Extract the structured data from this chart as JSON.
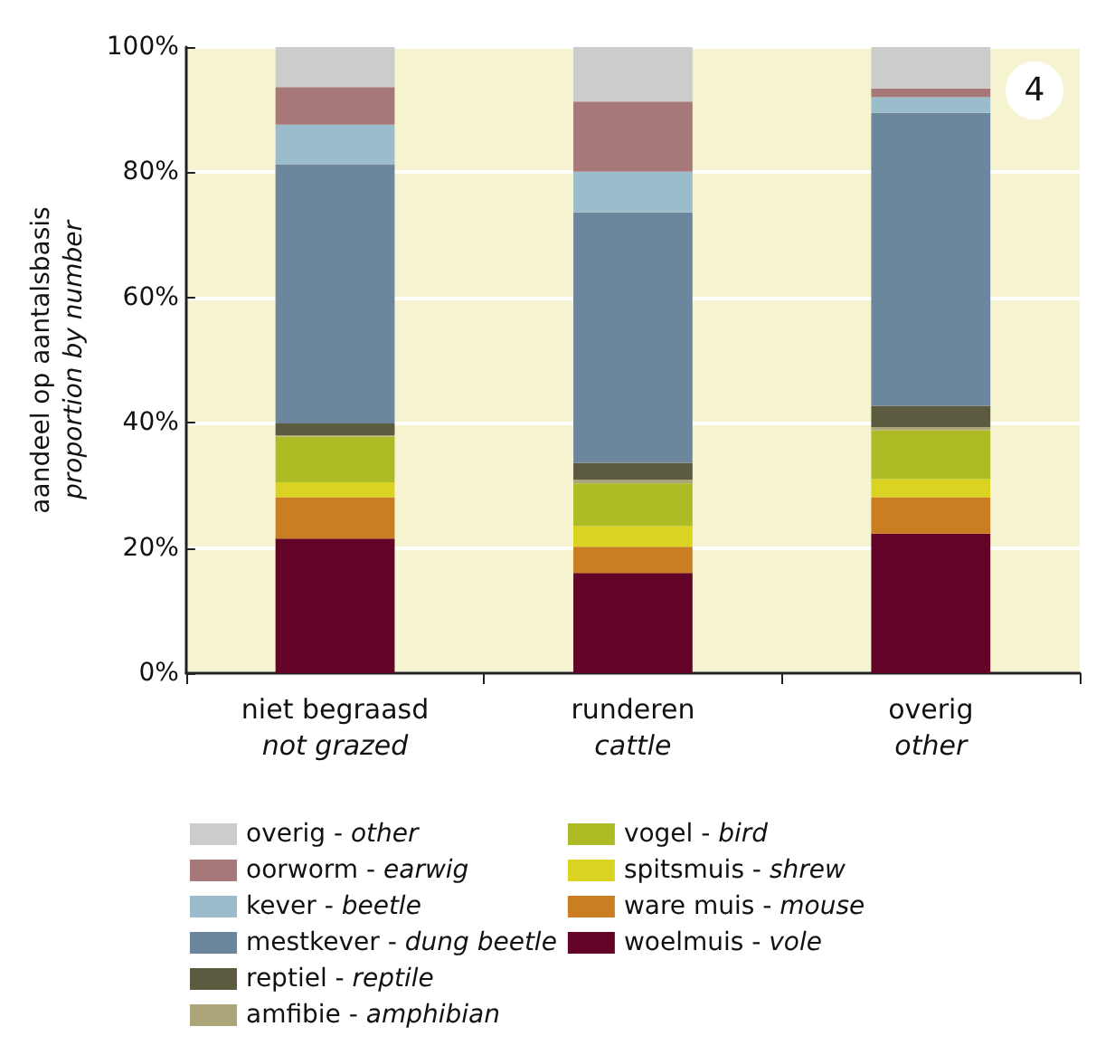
{
  "chart_data": {
    "type": "bar",
    "stacked": true,
    "ylabel": "aandeel op aantalsbasis\nproportion by number",
    "categories": [
      "niet begraasd\nnot grazed",
      "runderen\ncattle",
      "overig\nother"
    ],
    "series": [
      {
        "name": "woelmuis - vole",
        "color": "#640328",
        "values": [
          21.5,
          16.0,
          22.3
        ]
      },
      {
        "name": "ware muis - mouse",
        "color": "#cb7d22",
        "values": [
          6.6,
          4.2,
          5.8
        ]
      },
      {
        "name": "spitsmuis - shrew",
        "color": "#dad322",
        "values": [
          2.4,
          3.3,
          2.9
        ]
      },
      {
        "name": "vogel - bird",
        "color": "#adbb24",
        "values": [
          7.3,
          6.8,
          7.8
        ]
      },
      {
        "name": "amfibie - amphibian",
        "color": "#aca67a",
        "values": [
          0.2,
          0.6,
          0.5
        ]
      },
      {
        "name": "reptiel - reptile",
        "color": "#5c5a3f",
        "values": [
          1.9,
          2.7,
          3.4
        ]
      },
      {
        "name": "mestkever - dung beetle",
        "color": "#6c879d",
        "values": [
          41.4,
          40.0,
          46.8
        ]
      },
      {
        "name": "kever - beetle",
        "color": "#9bbccb",
        "values": [
          6.3,
          6.5,
          2.5
        ]
      },
      {
        "name": "oorworm - earwig",
        "color": "#a67879",
        "values": [
          6.0,
          11.2,
          1.4
        ]
      },
      {
        "name": "overig - other",
        "color": "#cccccc",
        "values": [
          6.4,
          8.7,
          6.6
        ]
      }
    ],
    "ylim": [
      0,
      100
    ],
    "yticks": [
      {
        "value": 0,
        "label": "0%"
      },
      {
        "value": 20,
        "label": "20%"
      },
      {
        "value": 40,
        "label": "40%"
      },
      {
        "value": 60,
        "label": "60%"
      },
      {
        "value": 80,
        "label": "80%"
      },
      {
        "value": 100,
        "label": "100%"
      }
    ],
    "grid": "y",
    "legend": "bottom",
    "annotations": [
      "4"
    ]
  }
}
